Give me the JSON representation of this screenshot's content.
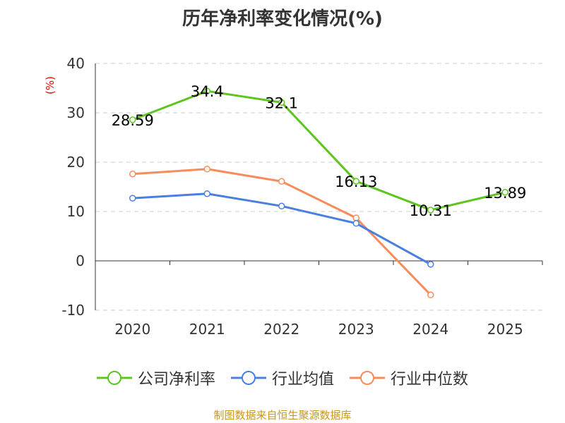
{
  "chart_data": {
    "type": "line",
    "title": "历年净利率变化情况(%)",
    "ylabel": "(%)",
    "categories": [
      "2020",
      "2021",
      "2022",
      "2023",
      "2024",
      "2025"
    ],
    "ylim": [
      -10,
      40
    ],
    "yticks": [
      -10,
      0,
      10,
      20,
      30,
      40
    ],
    "grid": true,
    "legend_position": "bottom",
    "series": [
      {
        "name": "公司净利率",
        "color": "#5cc51e",
        "values": [
          28.59,
          34.4,
          32.1,
          16.13,
          10.31,
          13.89
        ],
        "labels": [
          "28.59",
          "34.4",
          "32.1",
          "16.13",
          "10.31",
          "13.89"
        ]
      },
      {
        "name": "行业均值",
        "color": "#4a7fe0",
        "values": [
          12.7,
          13.6,
          11.1,
          7.6,
          -0.7,
          null
        ]
      },
      {
        "name": "行业中位数",
        "color": "#f98b5a",
        "values": [
          17.6,
          18.6,
          16.1,
          8.7,
          -6.9,
          null
        ]
      }
    ]
  },
  "source": "制图数据来自恒生聚源数据库"
}
